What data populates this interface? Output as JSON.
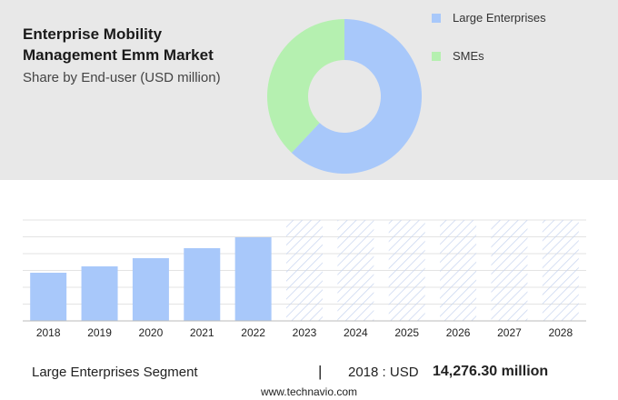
{
  "chart_data": [
    {
      "type": "pie",
      "title": "Enterprise Mobility Management Emm Market",
      "subtitle": "Share by End-user (USD million)",
      "categories": [
        "Large Enterprises",
        "SMEs"
      ],
      "values": [
        62,
        38
      ],
      "colors": [
        "#a8c8fa",
        "#b5f0b0"
      ]
    },
    {
      "type": "bar",
      "categories": [
        "2018",
        "2019",
        "2020",
        "2021",
        "2022",
        "2023",
        "2024",
        "2025",
        "2026",
        "2027",
        "2028"
      ],
      "values": [
        14276.3,
        16160,
        18590,
        21550,
        24780,
        null,
        null,
        null,
        null,
        null,
        null
      ],
      "color": "#a8c8fa",
      "ylim": [
        0,
        29900
      ],
      "grid": true
    }
  ],
  "footer": {
    "segment": "Large Enterprises Segment",
    "separator": "|",
    "year": "2018 : USD",
    "value": "14,276.30 million"
  },
  "source": "www.technavio.com"
}
